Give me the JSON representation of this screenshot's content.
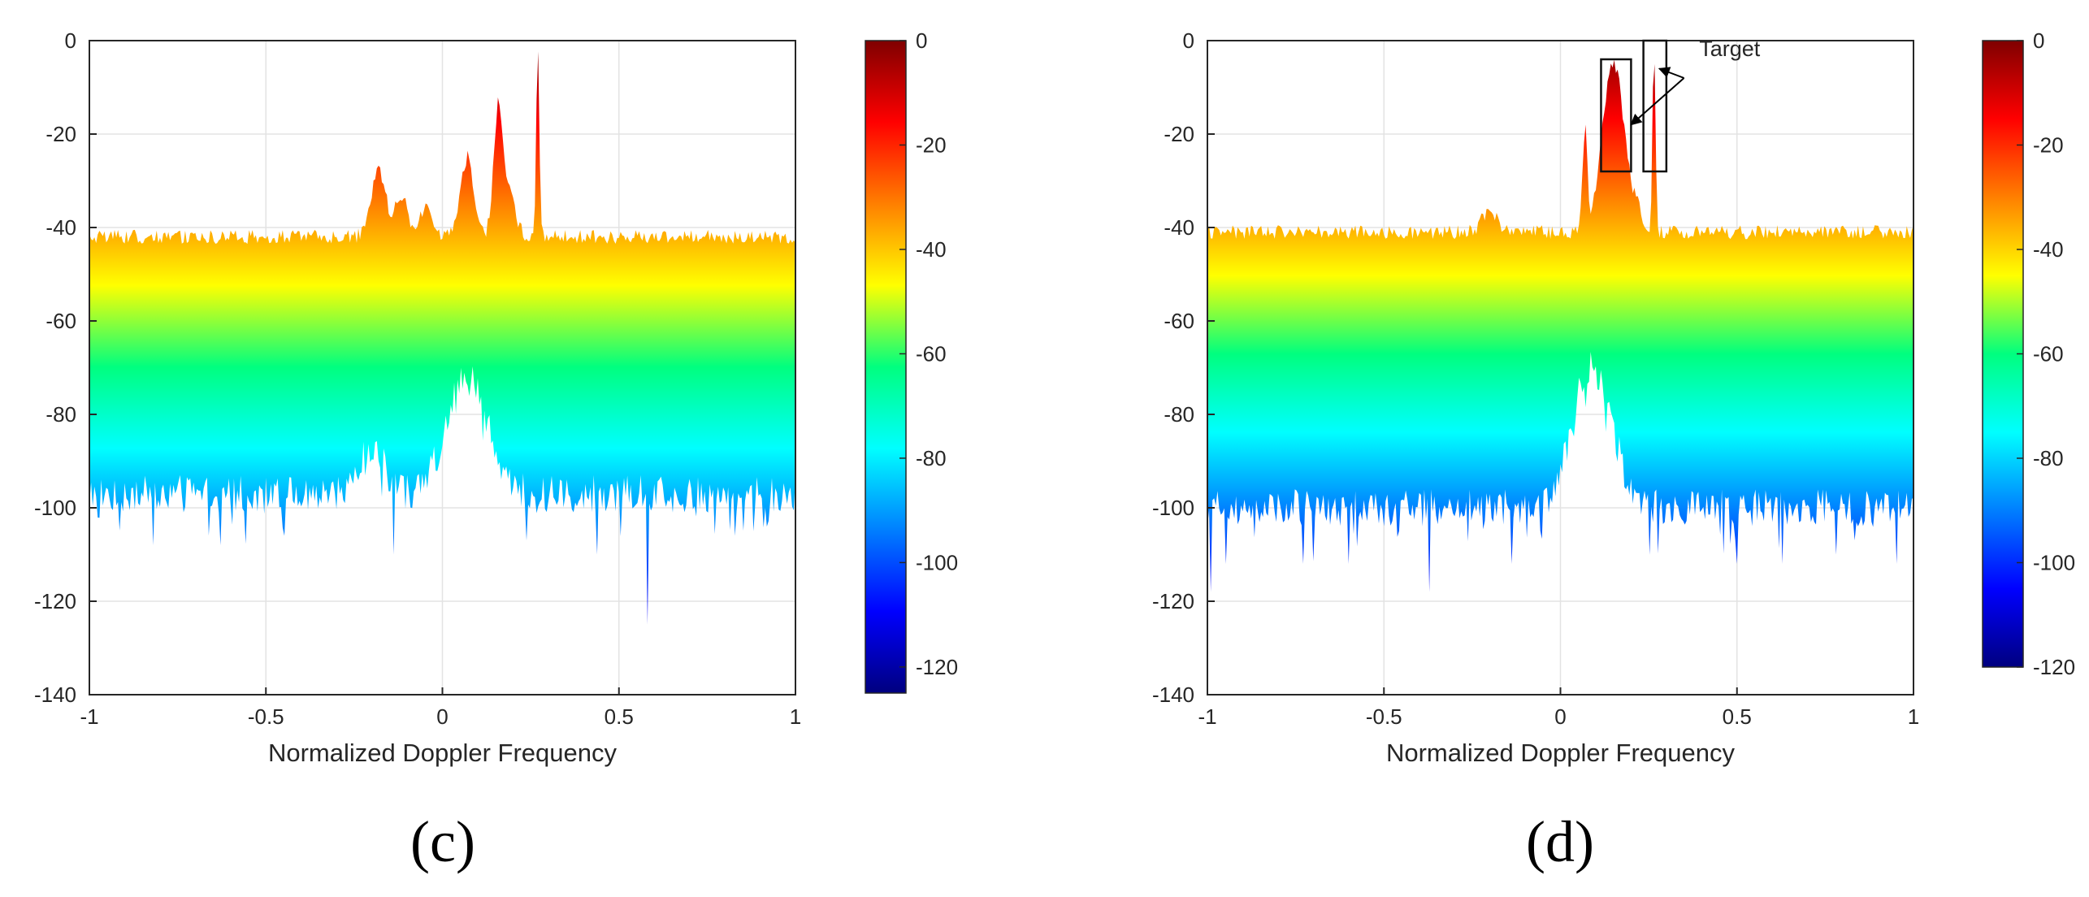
{
  "chart_data": [
    {
      "type": "area",
      "panel_label": "(c)",
      "title": "",
      "xlabel": "Normalized Doppler Frequency",
      "ylabel": "",
      "xlim": [
        -1,
        1
      ],
      "ylim": [
        -140,
        0
      ],
      "xticks": [
        -1,
        -0.5,
        0,
        0.5,
        1
      ],
      "yticks": [
        0,
        -20,
        -40,
        -60,
        -80,
        -100,
        -120,
        -140
      ],
      "grid": true,
      "color_scale": "jet",
      "colorbar": {
        "range": [
          -125,
          0
        ],
        "ticks": [
          0,
          -20,
          -40,
          -60,
          -80,
          -100,
          -120
        ]
      },
      "upper_envelope": {
        "baseline": -42,
        "noise": 1.5,
        "peaks": [
          {
            "x": -0.18,
            "y": -28,
            "width": 0.03
          },
          {
            "x": -0.12,
            "y": -33,
            "width": 0.03
          },
          {
            "x": -0.05,
            "y": -36,
            "width": 0.03
          },
          {
            "x": 0.07,
            "y": -25,
            "width": 0.025
          },
          {
            "x": 0.16,
            "y": -13,
            "width": 0.02
          },
          {
            "x": 0.18,
            "y": -30,
            "width": 0.03
          },
          {
            "x": 0.27,
            "y": 0,
            "width": 0.006
          }
        ]
      },
      "lower_envelope": {
        "baseline": -97,
        "noise": 4,
        "peaks": [
          {
            "x": 0.07,
            "y": -70,
            "width": 0.08
          },
          {
            "x": -0.2,
            "y": -88,
            "width": 0.05
          }
        ],
        "spikes": [
          {
            "x": -0.82,
            "y": -108
          },
          {
            "x": -0.63,
            "y": -108
          },
          {
            "x": -0.45,
            "y": -106
          },
          {
            "x": -0.14,
            "y": -110
          },
          {
            "x": 0.24,
            "y": -107
          },
          {
            "x": 0.44,
            "y": -110
          },
          {
            "x": 0.58,
            "y": -125
          },
          {
            "x": 0.83,
            "y": -106
          },
          {
            "x": 0.92,
            "y": -104
          }
        ]
      }
    },
    {
      "type": "area",
      "panel_label": "(d)",
      "title": "",
      "xlabel": "Normalized Doppler Frequency",
      "ylabel": "",
      "xlim": [
        -1,
        1
      ],
      "ylim": [
        -140,
        0
      ],
      "xticks": [
        -1,
        -0.5,
        0,
        0.5,
        1
      ],
      "yticks": [
        0,
        -20,
        -40,
        -60,
        -80,
        -100,
        -120,
        -140
      ],
      "grid": true,
      "color_scale": "jet",
      "colorbar": {
        "range": [
          -120,
          0
        ],
        "ticks": [
          0,
          -20,
          -40,
          -60,
          -80,
          -100,
          -120
        ]
      },
      "annotation": {
        "text": "Target",
        "boxes": [
          {
            "x": [
              0.115,
              0.2
            ],
            "y": [
              -28,
              -4
            ]
          },
          {
            "x": [
              0.235,
              0.3
            ],
            "y": [
              -28,
              0
            ]
          }
        ],
        "arrow_targets": [
          {
            "x": 0.2,
            "y": -18
          },
          {
            "x": 0.28,
            "y": -6
          }
        ]
      },
      "upper_envelope": {
        "baseline": -41,
        "noise": 1.5,
        "peaks": [
          {
            "x": 0.07,
            "y": -18,
            "width": 0.01
          },
          {
            "x": 0.15,
            "y": -5,
            "width": 0.045
          },
          {
            "x": 0.265,
            "y": -1,
            "width": 0.006
          },
          {
            "x": 0.21,
            "y": -32,
            "width": 0.02
          },
          {
            "x": -0.2,
            "y": -36,
            "width": 0.03
          }
        ]
      },
      "lower_envelope": {
        "baseline": -100,
        "noise": 4,
        "peaks": [
          {
            "x": 0.09,
            "y": -70,
            "width": 0.08
          }
        ],
        "spikes": [
          {
            "x": -0.99,
            "y": -118
          },
          {
            "x": -0.95,
            "y": -112
          },
          {
            "x": -0.73,
            "y": -112
          },
          {
            "x": -0.6,
            "y": -112
          },
          {
            "x": -0.37,
            "y": -118
          },
          {
            "x": -0.14,
            "y": -112
          },
          {
            "x": 0.5,
            "y": -112
          },
          {
            "x": 0.63,
            "y": -112
          },
          {
            "x": 0.78,
            "y": -110
          },
          {
            "x": 0.95,
            "y": -112
          }
        ]
      }
    }
  ]
}
